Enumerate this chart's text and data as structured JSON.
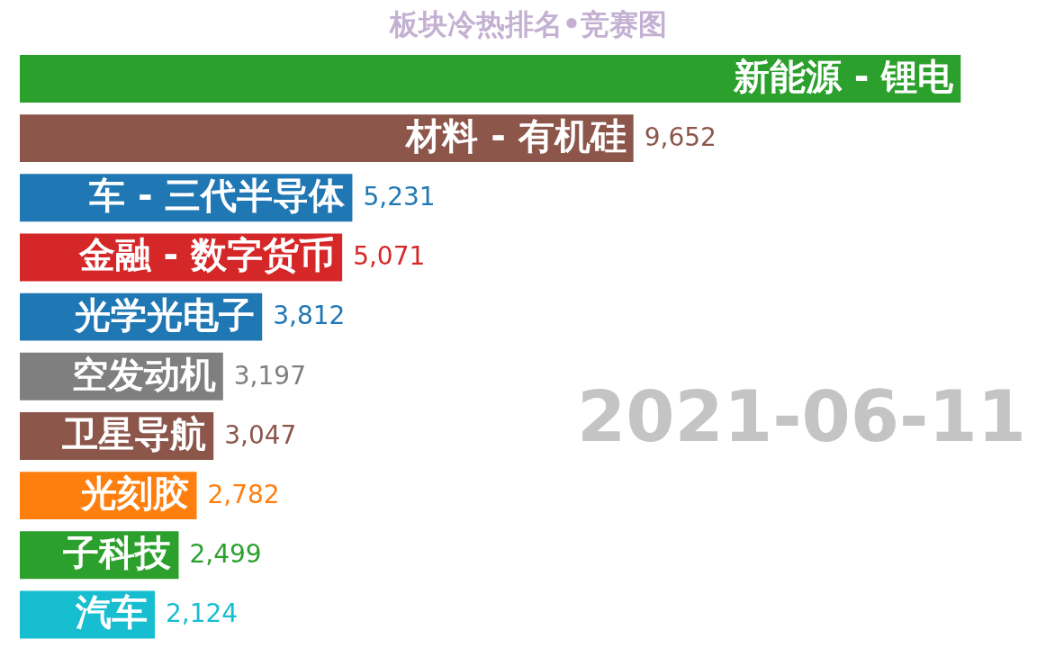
{
  "chart_data": {
    "type": "bar",
    "orientation": "horizontal",
    "title": "板块冷热排名•竞赛图",
    "categories": [
      "新能源 - 锂电",
      "材料 - 有机硅",
      "车 - 三代半导体",
      "金融 - 数字货币",
      "光学光电子",
      "空发动机",
      "卫星导航",
      "光刻胶",
      "子科技",
      "汽车"
    ],
    "values": [
      14800,
      9652,
      5231,
      5071,
      3812,
      3197,
      3047,
      2782,
      2499,
      2124
    ],
    "value_labels": [
      null,
      "9,652",
      "5,231",
      "5,071",
      "3,812",
      "3,197",
      "3,047",
      "2,782",
      "2,499",
      "2,124"
    ],
    "colors": [
      "#2ca02c",
      "#8c564b",
      "#1f77b4",
      "#d62728",
      "#1f77b4",
      "#7f7f7f",
      "#8c564b",
      "#ff7f0e",
      "#2ca02c",
      "#17becf"
    ],
    "annotations": [
      "2021-06-11"
    ]
  }
}
